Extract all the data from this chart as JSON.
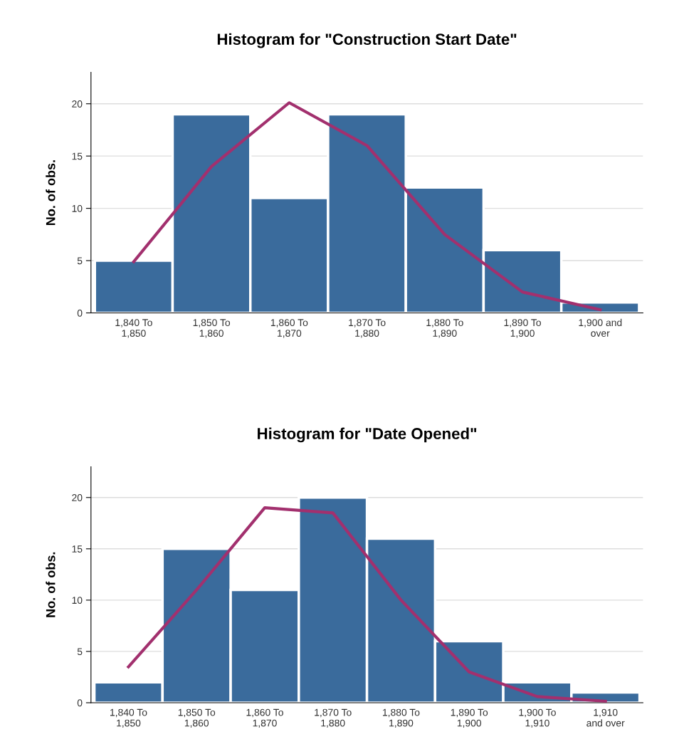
{
  "chart_data": [
    {
      "type": "bar",
      "title": "Histogram for \"Construction Start Date\"",
      "ylabel": "No. of obs.",
      "categories": [
        "1,840 To\n1,850",
        "1,850 To\n1,860",
        "1,860 To\n1,870",
        "1,870 To\n1,880",
        "1,880 To\n1,890",
        "1,890 To\n1,900",
        "1,900 and\nover"
      ],
      "ylim": [
        0,
        23
      ],
      "yticks": [
        0,
        5,
        10,
        15,
        20
      ],
      "grid": "y",
      "series": [
        {
          "type": "bar",
          "color": "#3a6b9c",
          "values": [
            5,
            19,
            11,
            19,
            12,
            6,
            1
          ]
        },
        {
          "type": "line",
          "color": "#a2306e",
          "values": [
            4.9,
            14,
            20.1,
            16,
            7.5,
            2,
            0.3
          ]
        }
      ]
    },
    {
      "type": "bar",
      "title": "Histogram for \"Date Opened\"",
      "ylabel": "No. of obs.",
      "categories": [
        "1,840 To\n1,850",
        "1,850 To\n1,860",
        "1,860 To\n1,870",
        "1,870 To\n1,880",
        "1,880 To\n1,890",
        "1,890 To\n1,900",
        "1,900 To\n1,910",
        "1,910\nand over"
      ],
      "ylim": [
        0,
        23
      ],
      "yticks": [
        0,
        5,
        10,
        15,
        20
      ],
      "grid": "y",
      "series": [
        {
          "type": "bar",
          "color": "#3a6b9c",
          "values": [
            2,
            15,
            11,
            20,
            16,
            6,
            2,
            1
          ]
        },
        {
          "type": "line",
          "color": "#a2306e",
          "values": [
            3.5,
            11,
            19,
            18.5,
            10,
            3,
            0.6,
            0.15
          ]
        }
      ]
    }
  ]
}
